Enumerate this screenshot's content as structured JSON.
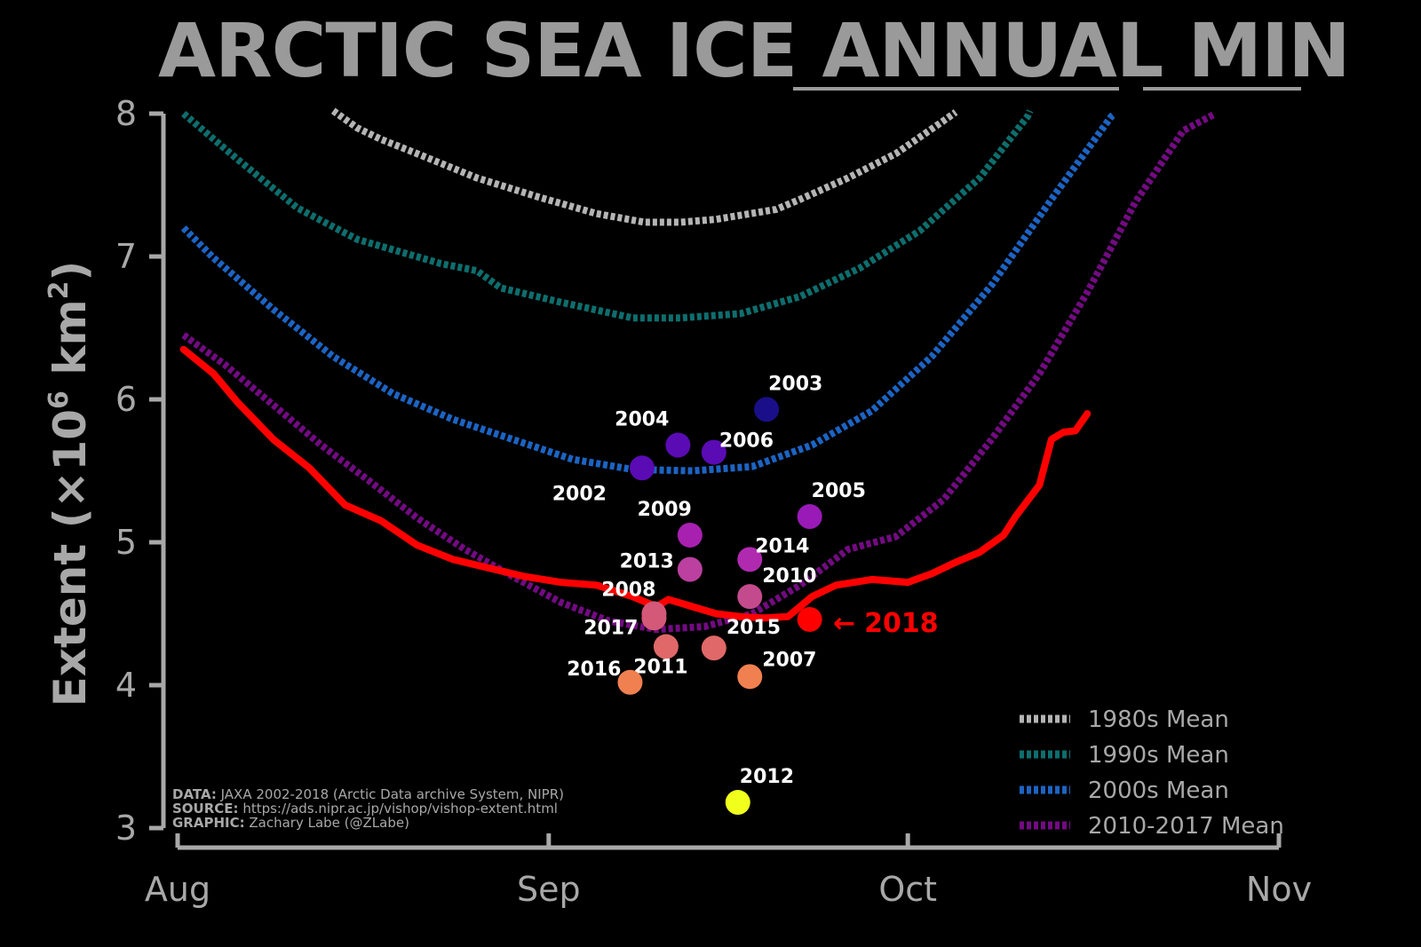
{
  "title": {
    "part1": "ARCTIC SEA ICE ",
    "part2": "ANNUAL",
    "part3": "MIN"
  },
  "credits": {
    "data_label": "DATA:",
    "data_text": "JAXA 2002-2018 (Arctic Data archive System, NIPR)",
    "source_label": "SOURCE:",
    "source_text": "https://ads.nipr.ac.jp/vishop/vishop-extent.html",
    "graphic_label": "GRAPHIC:",
    "graphic_text": "Zachary Labe (@ZLabe)"
  },
  "callout": {
    "label": "2018",
    "arrow": "←"
  },
  "colors": {
    "background": "#000000",
    "axis": "#a8a8a8",
    "mean_1980s": "#b4b4b4",
    "mean_1990s": "#0e6e6e",
    "mean_2000s": "#1c64c4",
    "mean_2010_2017": "#730b82",
    "year_2018": "#ff0000"
  },
  "chart_data": {
    "type": "line",
    "title": "ARCTIC SEA ICE ANNUAL MIN",
    "ylabel": "Extent (×10⁶ km²)",
    "ylabel_parts": {
      "main": "Extent (",
      "times": "×",
      "ten": "10",
      "exp6": "6",
      "unit": " km",
      "exp2": "2",
      "close": ")"
    },
    "xlabel": "",
    "ylim": [
      3,
      8
    ],
    "yticks": [
      "3",
      "4",
      "5",
      "6",
      "7",
      "8"
    ],
    "xlim": [
      0,
      92
    ],
    "xticks": [
      {
        "label": "Aug",
        "day": 0
      },
      {
        "label": "Sep",
        "day": 31
      },
      {
        "label": "Oct",
        "day": 61
      },
      {
        "label": "Nov",
        "day": 92
      }
    ],
    "legend": {
      "placement": "bottom-right"
    },
    "series": [
      {
        "name": "1980s Mean",
        "style": "dotted",
        "color": "#b4b4b4",
        "points": [
          [
            13,
            8.02
          ],
          [
            15,
            7.9
          ],
          [
            17,
            7.82
          ],
          [
            20,
            7.72
          ],
          [
            25,
            7.55
          ],
          [
            30,
            7.42
          ],
          [
            35,
            7.3
          ],
          [
            39,
            7.24
          ],
          [
            42,
            7.24
          ],
          [
            45,
            7.26
          ],
          [
            50,
            7.33
          ],
          [
            52,
            7.4
          ],
          [
            56,
            7.55
          ],
          [
            60,
            7.72
          ],
          [
            64,
            7.95
          ],
          [
            65,
            8.01
          ]
        ]
      },
      {
        "name": "1990s Mean",
        "style": "dotted",
        "color": "#0e6e6e",
        "points": [
          [
            0.5,
            8.0
          ],
          [
            5,
            7.68
          ],
          [
            10,
            7.34
          ],
          [
            15,
            7.12
          ],
          [
            22,
            6.95
          ],
          [
            25,
            6.9
          ],
          [
            27,
            6.78
          ],
          [
            32,
            6.68
          ],
          [
            38,
            6.57
          ],
          [
            42,
            6.57
          ],
          [
            47,
            6.6
          ],
          [
            52,
            6.72
          ],
          [
            57,
            6.92
          ],
          [
            62,
            7.18
          ],
          [
            67,
            7.55
          ],
          [
            71,
            7.98
          ],
          [
            71.2,
            8.02
          ]
        ]
      },
      {
        "name": "2000s Mean",
        "style": "dotted",
        "color": "#1c64c4",
        "points": [
          [
            0.5,
            7.2
          ],
          [
            3,
            6.99
          ],
          [
            8,
            6.63
          ],
          [
            13,
            6.3
          ],
          [
            18,
            6.04
          ],
          [
            23,
            5.86
          ],
          [
            28,
            5.72
          ],
          [
            33,
            5.58
          ],
          [
            38,
            5.51
          ],
          [
            43,
            5.5
          ],
          [
            48,
            5.53
          ],
          [
            53,
            5.68
          ],
          [
            58,
            5.92
          ],
          [
            63,
            6.3
          ],
          [
            68,
            6.8
          ],
          [
            73,
            7.4
          ],
          [
            78,
            7.98
          ],
          [
            78.3,
            8.0
          ]
        ]
      },
      {
        "name": "2010-2017 Mean",
        "style": "dotted",
        "color": "#730b82",
        "points": [
          [
            0.5,
            6.45
          ],
          [
            4,
            6.24
          ],
          [
            8,
            5.96
          ],
          [
            12,
            5.68
          ],
          [
            16,
            5.43
          ],
          [
            20,
            5.17
          ],
          [
            24,
            4.95
          ],
          [
            28,
            4.76
          ],
          [
            32,
            4.58
          ],
          [
            36,
            4.45
          ],
          [
            40,
            4.39
          ],
          [
            44,
            4.41
          ],
          [
            48,
            4.5
          ],
          [
            52,
            4.7
          ],
          [
            56,
            4.95
          ],
          [
            60,
            5.04
          ],
          [
            64,
            5.3
          ],
          [
            68,
            5.72
          ],
          [
            72,
            6.18
          ],
          [
            76,
            6.75
          ],
          [
            80,
            7.38
          ],
          [
            84,
            7.88
          ],
          [
            86.7,
            8.0
          ]
        ]
      },
      {
        "name": "2018",
        "style": "solid",
        "color": "#ff0000",
        "points": [
          [
            0.5,
            6.35
          ],
          [
            3,
            6.18
          ],
          [
            5,
            5.98
          ],
          [
            8,
            5.72
          ],
          [
            11,
            5.52
          ],
          [
            14,
            5.26
          ],
          [
            17,
            5.15
          ],
          [
            20,
            4.98
          ],
          [
            23,
            4.88
          ],
          [
            26,
            4.82
          ],
          [
            29,
            4.76
          ],
          [
            32,
            4.72
          ],
          [
            35,
            4.7
          ],
          [
            38,
            4.62
          ],
          [
            40,
            4.55
          ],
          [
            41,
            4.6
          ],
          [
            43,
            4.55
          ],
          [
            45,
            4.5
          ],
          [
            47,
            4.48
          ],
          [
            49,
            4.47
          ],
          [
            51,
            4.48
          ],
          [
            53,
            4.62
          ],
          [
            55,
            4.7
          ],
          [
            58,
            4.74
          ],
          [
            61,
            4.72
          ],
          [
            63,
            4.78
          ],
          [
            65,
            4.86
          ],
          [
            67,
            4.93
          ],
          [
            69,
            5.05
          ],
          [
            70,
            5.18
          ],
          [
            72,
            5.4
          ],
          [
            73,
            5.72
          ],
          [
            74,
            5.77
          ],
          [
            75,
            5.78
          ],
          [
            76,
            5.9
          ]
        ]
      }
    ],
    "minima": [
      {
        "year": "2002",
        "day": 38.8,
        "extent": 5.52,
        "color": "#5a0bb4"
      },
      {
        "year": "2003",
        "day": 49.2,
        "extent": 5.93,
        "color": "#1a0f88"
      },
      {
        "year": "2004",
        "day": 41.8,
        "extent": 5.68,
        "color": "#5a0bb4"
      },
      {
        "year": "2005",
        "day": 52.8,
        "extent": 5.18,
        "color": "#9a1ab8"
      },
      {
        "year": "2006",
        "day": 44.8,
        "extent": 5.63,
        "color": "#5a0bb4"
      },
      {
        "year": "2007",
        "day": 47.8,
        "extent": 4.06,
        "color": "#f08050"
      },
      {
        "year": "2008",
        "day": 39.8,
        "extent": 4.5,
        "color": "#d45878"
      },
      {
        "year": "2009",
        "day": 42.8,
        "extent": 5.05,
        "color": "#a820b0"
      },
      {
        "year": "2010",
        "day": 47.8,
        "extent": 4.62,
        "color": "#c44a8e"
      },
      {
        "year": "2011",
        "day": 40.8,
        "extent": 4.27,
        "color": "#e06868"
      },
      {
        "year": "2012",
        "day": 46.8,
        "extent": 3.18,
        "color": "#f0ff1c"
      },
      {
        "year": "2013",
        "day": 42.8,
        "extent": 4.81,
        "color": "#bb40a0"
      },
      {
        "year": "2014",
        "day": 47.8,
        "extent": 4.88,
        "color": "#b02ab0"
      },
      {
        "year": "2015",
        "day": 44.8,
        "extent": 4.26,
        "color": "#e06868"
      },
      {
        "year": "2016",
        "day": 37.8,
        "extent": 4.02,
        "color": "#f08050"
      },
      {
        "year": "2017",
        "day": 39.8,
        "extent": 4.47,
        "color": "#d45878"
      },
      {
        "year": "2018",
        "day": 52.8,
        "extent": 4.46,
        "color": "#ff0000"
      }
    ]
  }
}
